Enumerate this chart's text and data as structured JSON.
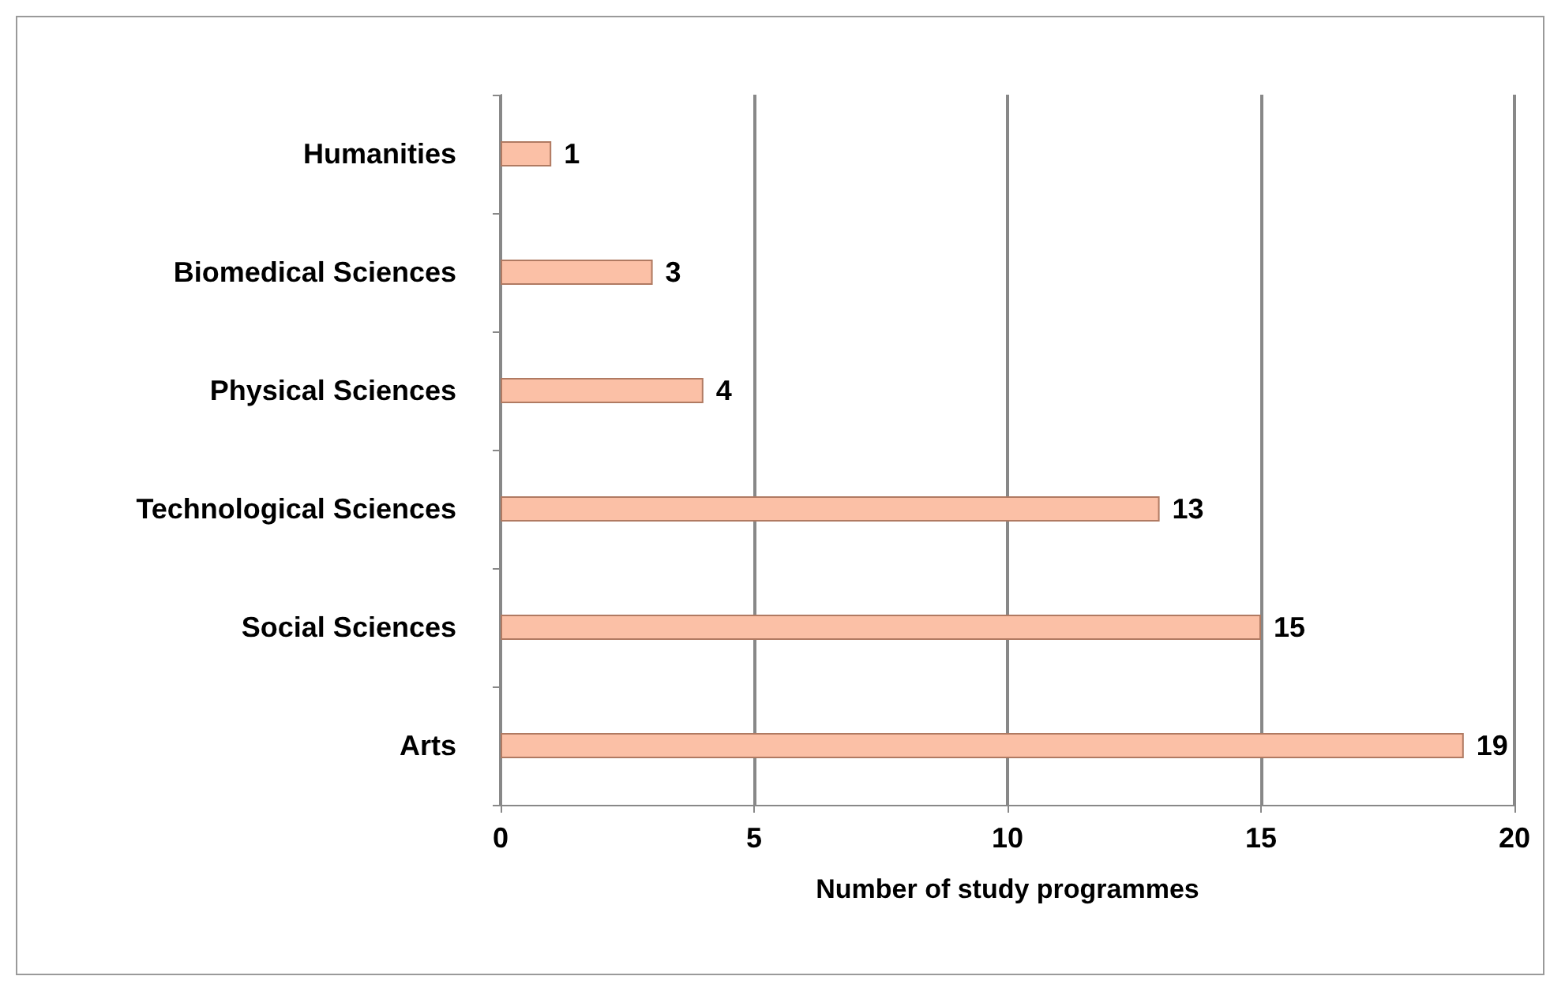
{
  "chart_data": {
    "type": "bar",
    "orientation": "horizontal",
    "categories": [
      "Humanities",
      "Biomedical Sciences",
      "Physical Sciences",
      "Technological Sciences",
      "Social Sciences",
      "Arts"
    ],
    "values": [
      1,
      3,
      4,
      13,
      15,
      19
    ],
    "color": "#fbc0a6",
    "xlim": [
      0,
      20
    ],
    "xticks": [
      0,
      5,
      10,
      15,
      20
    ],
    "xlabel": "Number of study programmes",
    "grid": "x",
    "data_labels": true
  }
}
